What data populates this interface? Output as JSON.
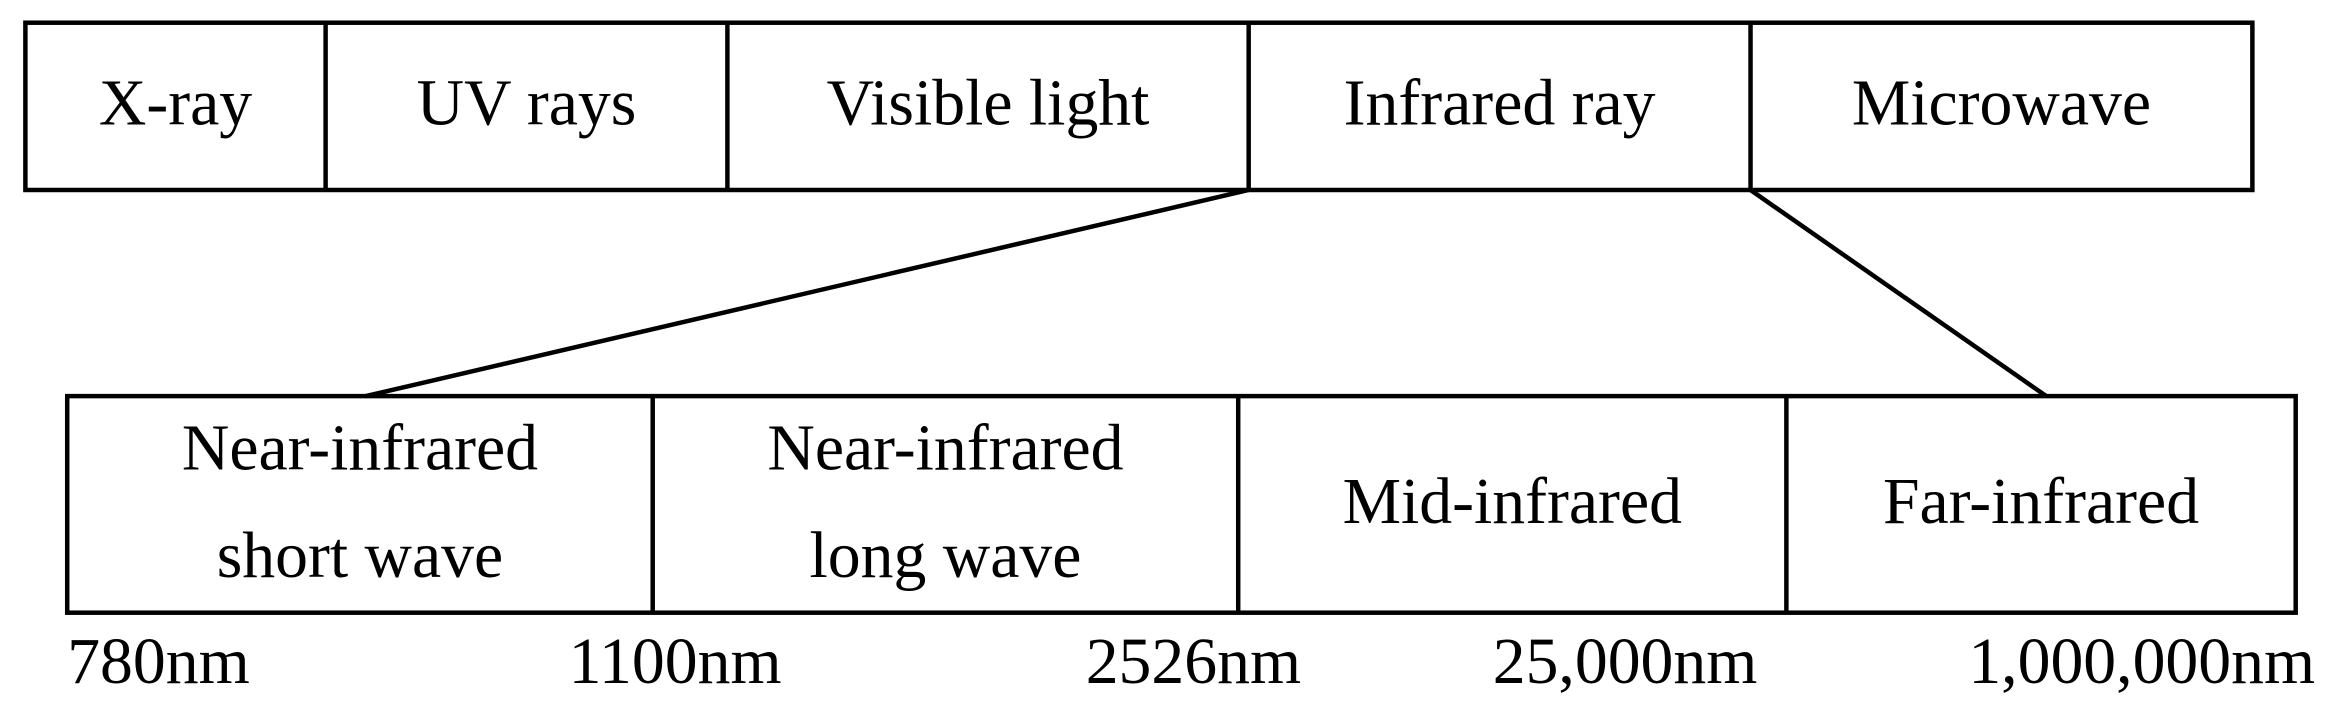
{
  "top_row": {
    "cells": [
      "X-ray",
      "UV rays",
      "Visible light",
      "Infrared ray",
      "Microwave"
    ]
  },
  "bottom_row": {
    "cells": [
      {
        "lines": [
          "Near-infrared",
          "short wave"
        ]
      },
      {
        "lines": [
          "Near-infrared",
          "long wave"
        ]
      },
      {
        "lines": [
          "Mid-infrared"
        ]
      },
      {
        "lines": [
          "Far-infrared"
        ]
      }
    ]
  },
  "wavelengths": [
    "780nm",
    "1100nm",
    "2526nm",
    "25,000nm",
    "1,000,000nm"
  ]
}
